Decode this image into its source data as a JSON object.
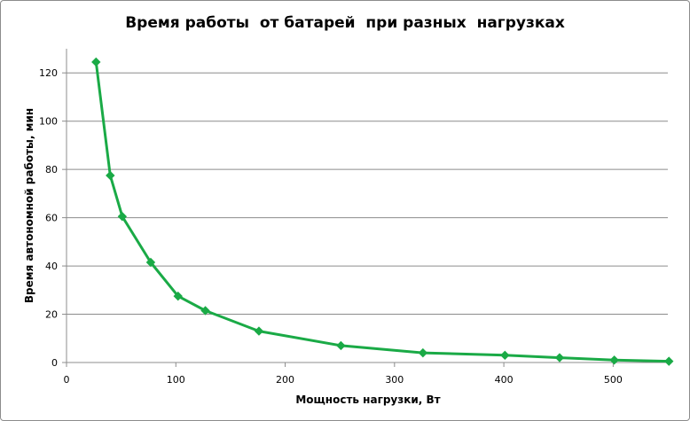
{
  "chart_data": {
    "type": "line",
    "title": "Время работы  от батарей  при разных  нагрузках",
    "xlabel": "Мощность нагрузки, Вт",
    "ylabel": "Время автономной работы, мин",
    "xlim": [
      0,
      550
    ],
    "ylim": [
      0,
      130
    ],
    "xticks": [
      0,
      100,
      200,
      300,
      400,
      500
    ],
    "yticks": [
      0,
      20,
      40,
      60,
      80,
      100,
      120
    ],
    "grid": "horizontal",
    "legend": "none",
    "series": [
      {
        "color": "#1aaa46",
        "marker": "diamond",
        "points": [
          {
            "x": 27,
            "y": 124.5
          },
          {
            "x": 40,
            "y": 77.5
          },
          {
            "x": 51,
            "y": 60.5
          },
          {
            "x": 77,
            "y": 41.5
          },
          {
            "x": 102,
            "y": 27.5
          },
          {
            "x": 127,
            "y": 21.5
          },
          {
            "x": 176,
            "y": 13
          },
          {
            "x": 251,
            "y": 7
          },
          {
            "x": 326,
            "y": 4
          },
          {
            "x": 401,
            "y": 3
          },
          {
            "x": 451,
            "y": 2
          },
          {
            "x": 501,
            "y": 1
          },
          {
            "x": 551,
            "y": 0.5
          }
        ]
      }
    ]
  }
}
